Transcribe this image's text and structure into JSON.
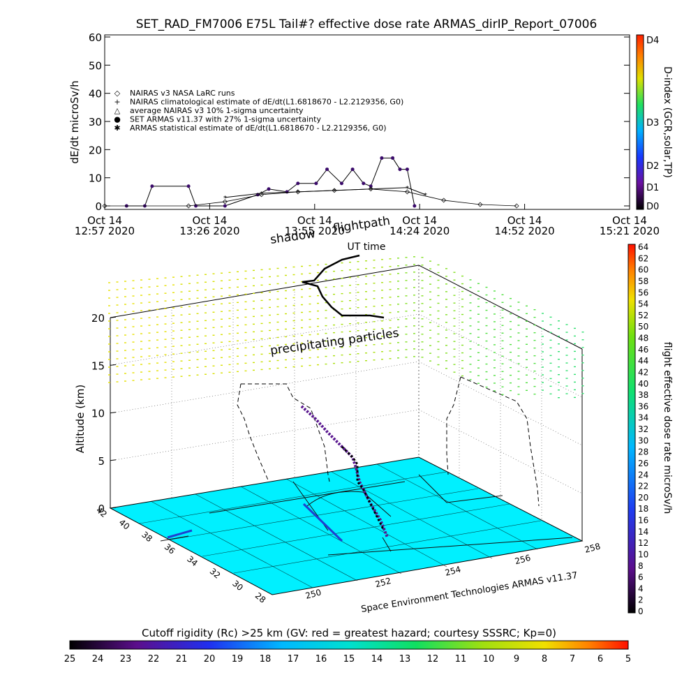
{
  "title": "SET_RAD_FM7006   E75L Tail#? effective dose rate ARMAS_dirIP_Report_07006",
  "top_plot": {
    "ylabel": "dE/dt microSv/h",
    "xlabel": "UT time",
    "y_ticks": [
      "0",
      "10",
      "20",
      "30",
      "40",
      "50",
      "60"
    ],
    "x_ticks": [
      {
        "day": "Oct 14",
        "time": "12:57 2020"
      },
      {
        "day": "Oct 14",
        "time": "13:26 2020"
      },
      {
        "day": "Oct 14",
        "time": "13:55 2020"
      },
      {
        "day": "Oct 14",
        "time": "14:24 2020"
      },
      {
        "day": "Oct 14",
        "time": "14:52 2020"
      },
      {
        "day": "Oct 14",
        "time": "15:21 2020"
      }
    ],
    "legend": [
      {
        "symbol": "◇",
        "label": "NAIRAS v3 NASA LaRC runs"
      },
      {
        "symbol": "+",
        "label": "NAIRAS climatological estimate of dE/dt(L1.6818670 - L2.2129356, G0)"
      },
      {
        "symbol": "△",
        "label": "average NAIRAS v3 10% 1-sigma uncertainty"
      },
      {
        "symbol": "●",
        "label": "SET ARMAS v11.37 with 27% 1-sigma uncertainty"
      },
      {
        "symbol": "✱",
        "label": "ARMAS statistical estimate of dE/dt(L1.6818670 - L2.2129356, G0)"
      }
    ],
    "dindex": {
      "label": "D-index (GCR,solar,TP)",
      "ticks": [
        "D4",
        "D3",
        "D2",
        "D1",
        "D0"
      ]
    }
  },
  "chart_data": [
    {
      "type": "line",
      "title": "SET_RAD_FM7006   E75L Tail#? effective dose rate ARMAS_dirIP_Report_07006",
      "xlabel": "UT time",
      "ylabel": "dE/dt microSv/h",
      "xlim": [
        "12:57",
        "15:21"
      ],
      "ylim": [
        0,
        60
      ],
      "series": [
        {
          "name": "SET ARMAS v11.37 with 27% 1-sigma uncertainty",
          "x": [
            "13:03",
            "13:08",
            "13:10",
            "13:20",
            "13:22",
            "13:30",
            "13:39",
            "13:42",
            "13:47",
            "13:50",
            "13:55",
            "13:58",
            "14:02",
            "14:05",
            "14:08",
            "14:10",
            "14:13",
            "14:16",
            "14:18",
            "14:20",
            "14:22"
          ],
          "y": [
            0,
            0,
            7,
            7,
            0,
            0,
            4,
            6,
            5,
            8,
            8,
            13,
            8,
            13,
            8,
            7,
            17,
            17,
            13,
            13,
            0
          ]
        },
        {
          "name": "ARMAS statistical estimate of dE/dt(L1.6818670 - L2.2129356, G0)",
          "x": [
            "13:30",
            "13:40",
            "13:50",
            "14:00",
            "14:10",
            "14:20",
            "14:25"
          ],
          "y": [
            3,
            4.5,
            5,
            5.5,
            6,
            6.5,
            4
          ]
        },
        {
          "name": "NAIRAS v3 NASA LaRC runs",
          "x": [
            "12:57",
            "13:20",
            "13:30",
            "13:40",
            "13:50",
            "14:00",
            "14:10",
            "14:20",
            "14:30",
            "14:40",
            "14:50"
          ],
          "y": [
            0,
            0,
            1.5,
            4,
            5,
            5.5,
            6,
            5,
            2,
            0.5,
            0
          ]
        }
      ]
    },
    {
      "type": "scatter",
      "title": "",
      "xlabel": "",
      "ylabel": "Altitude (km)",
      "zlim": [
        0,
        20
      ],
      "alt_ticks": [
        "0",
        "5",
        "10",
        "15",
        "20"
      ],
      "lat_ticks": [
        "42",
        "40",
        "38",
        "36",
        "34",
        "32",
        "30",
        "28"
      ],
      "lon_ticks": [
        "250",
        "252",
        "254",
        "256",
        "258"
      ],
      "annotations": [
        "shadow",
        "flightpath",
        "precipitating particles"
      ],
      "footer": "Space Environment Technologies ARMAS v11.37",
      "colorbar": {
        "label": "flight effective dose rate microSv/h",
        "ticks": [
          "0",
          "2",
          "4",
          "6",
          "8",
          "10",
          "12",
          "14",
          "16",
          "18",
          "20",
          "22",
          "24",
          "26",
          "28",
          "30",
          "32",
          "34",
          "36",
          "38",
          "40",
          "42",
          "44",
          "46",
          "48",
          "50",
          "52",
          "54",
          "56",
          "58",
          "60",
          "62",
          "64"
        ]
      }
    },
    {
      "type": "heatmap",
      "title": "Cutoff rigidity (Rc) >25 km (GV: red = greatest hazard; courtesy SSSRC; Kp=0)",
      "ticks": [
        "25",
        "24",
        "23",
        "22",
        "21",
        "20",
        "19",
        "18",
        "17",
        "16",
        "15",
        "14",
        "13",
        "12",
        "11",
        "10",
        "9",
        "8",
        "7",
        "6",
        "5"
      ]
    }
  ]
}
